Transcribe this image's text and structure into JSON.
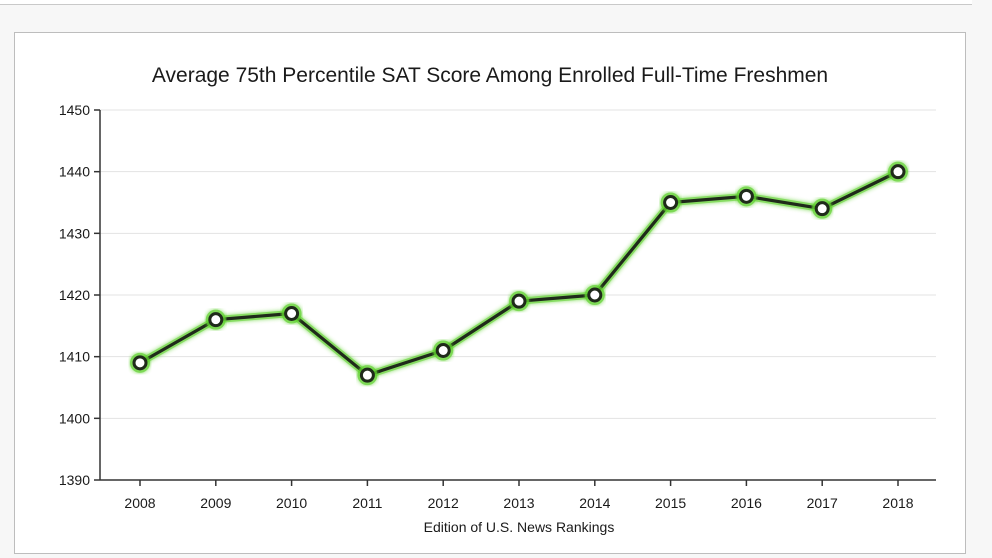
{
  "chart_data": {
    "type": "line",
    "title": "Average 75th Percentile SAT Score Among Enrolled Full-Time Freshmen",
    "xlabel": "Edition of U.S. News Rankings",
    "ylabel": "",
    "categories": [
      "2008",
      "2009",
      "2010",
      "2011",
      "2012",
      "2013",
      "2014",
      "2015",
      "2016",
      "2017",
      "2018"
    ],
    "series": [
      {
        "values": [
          1409,
          1416,
          1417,
          1407,
          1411,
          1419,
          1420,
          1435,
          1436,
          1434,
          1440
        ]
      }
    ],
    "ylim": [
      1390,
      1450
    ],
    "yticks": [
      "1390",
      "1400",
      "1410",
      "1420",
      "1430",
      "1440",
      "1450"
    ],
    "grid": true,
    "colors": {
      "line": "#1f2a1a",
      "glow": "#5fd12f",
      "marker_fill": "#ffffff",
      "marker_stroke": "#1f2a1a",
      "grid": "#e3e3e3",
      "axis": "#333333"
    }
  }
}
